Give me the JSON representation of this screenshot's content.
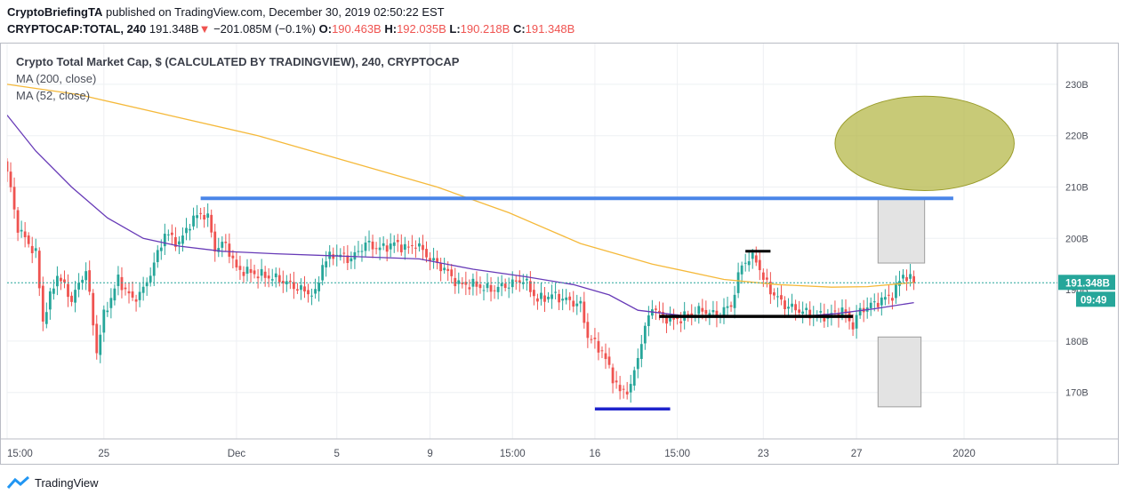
{
  "header": {
    "author": "CryptoBriefingTA",
    "published_text": " published on TradingView.com, December 30, 2019 02:50:22 EST",
    "symbol": "CRYPTOCAP:TOTAL, 240",
    "last_value": "191.348B",
    "change_arrow": "▼",
    "change": "−201.085M (−0.1%)",
    "o_label": "O:",
    "o_value": "190.463B",
    "h_label": "H:",
    "h_value": "192.035B",
    "l_label": "L:",
    "l_value": "190.218B",
    "c_label": "C:",
    "c_value": "191.348B"
  },
  "legend": {
    "title": "Crypto Total Market Cap, $ (CALCULATED BY TRADINGVIEW), 240, CRYPTOCAP",
    "ma200": "MA (200, close)",
    "ma52": "MA (52, close)"
  },
  "footer": {
    "brand": "TradingView"
  },
  "colors": {
    "up": "#26a69a",
    "down": "#ef5350",
    "ma200": "#f5b93a",
    "ma52": "#673ab7",
    "resistance": "#4a86e8",
    "support_low": "#1f24cc",
    "support": "#000000",
    "target_ellipse": "#b5b84a",
    "box": "#e3e3e3",
    "price_label_bg": "#26a69a",
    "last_line": "#26a69a"
  },
  "chart_data": {
    "type": "candlestick",
    "title": "Crypto Total Market Cap, $ (CALCULATED BY TRADINGVIEW), 240, CRYPTOCAP",
    "ylim": [
      162,
      238
    ],
    "y_ticks": [
      {
        "value": 230,
        "label": "230B"
      },
      {
        "value": 220,
        "label": "220B"
      },
      {
        "value": 210,
        "label": "210B"
      },
      {
        "value": 200,
        "label": "200B"
      },
      {
        "value": 180,
        "label": "180B"
      },
      {
        "value": 170,
        "label": "170B"
      }
    ],
    "x_labels": [
      {
        "label": "15:00",
        "bar": 0
      },
      {
        "label": "25",
        "bar": 27
      },
      {
        "label": "Dec",
        "bar": 64
      },
      {
        "label": "5",
        "bar": 92
      },
      {
        "label": "9",
        "bar": 118
      },
      {
        "label": "15:00",
        "bar": 141
      },
      {
        "label": "16",
        "bar": 164
      },
      {
        "label": "15:00",
        "bar": 187
      },
      {
        "label": "23",
        "bar": 211
      },
      {
        "label": "27",
        "bar": 237
      },
      {
        "label": "2020",
        "bar": 267
      }
    ],
    "last_price": {
      "value": 191.348,
      "label": "191.348B",
      "countdown": "09:49"
    },
    "key_closes": [
      [
        0,
        213
      ],
      [
        3,
        202
      ],
      [
        8,
        197
      ],
      [
        10,
        184
      ],
      [
        14,
        193
      ],
      [
        18,
        188
      ],
      [
        22,
        194
      ],
      [
        25,
        178
      ],
      [
        27,
        185
      ],
      [
        31,
        192
      ],
      [
        35,
        188
      ],
      [
        38,
        190
      ],
      [
        41,
        195
      ],
      [
        44,
        201
      ],
      [
        48,
        199
      ],
      [
        51,
        203
      ],
      [
        54,
        205
      ],
      [
        56,
        204
      ],
      [
        58,
        198
      ],
      [
        61,
        199
      ],
      [
        64,
        194
      ],
      [
        70,
        193
      ],
      [
        76,
        192
      ],
      [
        82,
        190
      ],
      [
        86,
        189
      ],
      [
        88,
        195
      ],
      [
        91,
        197
      ],
      [
        96,
        196
      ],
      [
        100,
        199
      ],
      [
        104,
        198
      ],
      [
        108,
        199
      ],
      [
        112,
        198
      ],
      [
        114,
        199
      ],
      [
        118,
        196
      ],
      [
        122,
        194
      ],
      [
        126,
        191
      ],
      [
        130,
        191
      ],
      [
        135,
        190
      ],
      [
        140,
        191
      ],
      [
        144,
        192
      ],
      [
        148,
        188
      ],
      [
        152,
        189
      ],
      [
        156,
        188
      ],
      [
        160,
        187
      ],
      [
        162,
        181
      ],
      [
        166,
        178
      ],
      [
        169,
        173
      ],
      [
        171,
        170
      ],
      [
        174,
        171
      ],
      [
        177,
        180
      ],
      [
        180,
        187
      ],
      [
        182,
        185
      ],
      [
        186,
        184
      ],
      [
        190,
        185
      ],
      [
        194,
        186
      ],
      [
        198,
        185
      ],
      [
        202,
        187
      ],
      [
        205,
        195
      ],
      [
        207,
        196
      ],
      [
        209,
        196
      ],
      [
        211,
        192
      ],
      [
        214,
        189
      ],
      [
        217,
        187
      ],
      [
        221,
        186
      ],
      [
        225,
        185
      ],
      [
        229,
        185
      ],
      [
        233,
        186
      ],
      [
        236,
        183
      ],
      [
        238,
        186
      ],
      [
        241,
        187
      ],
      [
        244,
        188
      ],
      [
        247,
        189
      ],
      [
        250,
        193
      ],
      [
        252,
        192
      ],
      [
        253,
        191.35
      ]
    ],
    "series": [
      {
        "name": "MA (200, close)",
        "points": [
          [
            0,
            230
          ],
          [
            20,
            228
          ],
          [
            45,
            224
          ],
          [
            70,
            220
          ],
          [
            95,
            215
          ],
          [
            120,
            210
          ],
          [
            140,
            205
          ],
          [
            160,
            199
          ],
          [
            180,
            195
          ],
          [
            200,
            192
          ],
          [
            215,
            191
          ],
          [
            230,
            190.5
          ],
          [
            240,
            190.6
          ],
          [
            253,
            191.4
          ]
        ]
      },
      {
        "name": "MA (52, close)",
        "points": [
          [
            0,
            224
          ],
          [
            8,
            217
          ],
          [
            18,
            210
          ],
          [
            28,
            204
          ],
          [
            38,
            200
          ],
          [
            48,
            198.5
          ],
          [
            60,
            197.5
          ],
          [
            75,
            197
          ],
          [
            95,
            196.5
          ],
          [
            115,
            196
          ],
          [
            130,
            194
          ],
          [
            145,
            192.5
          ],
          [
            158,
            191
          ],
          [
            168,
            189
          ],
          [
            176,
            186
          ],
          [
            188,
            185
          ],
          [
            200,
            184.7
          ],
          [
            212,
            184.7
          ],
          [
            222,
            184.8
          ],
          [
            232,
            185.4
          ],
          [
            242,
            186.3
          ],
          [
            253,
            187.5
          ]
        ]
      }
    ],
    "annotations": {
      "resistance_line": {
        "from_bar": 54,
        "to_bar": 264,
        "value": 207.8
      },
      "low_support_line": {
        "from_bar": 164,
        "to_bar": 185,
        "value": 166.8
      },
      "support_line": {
        "from_bar": 182,
        "to_bar": 236,
        "value": 184.8
      },
      "small_top_line": {
        "from_bar": 206,
        "to_bar": 213,
        "value": 197.5
      },
      "target_zone": {
        "center_bar": 256,
        "center_value": 218.5,
        "half_width_bars": 25,
        "half_height_value": 9.2
      },
      "upper_box": {
        "from_bar": 243,
        "to_bar": 256,
        "top": 207.6,
        "bottom": 195.2
      },
      "lower_box": {
        "from_bar": 243,
        "to_bar": 255,
        "top": 180.8,
        "bottom": 167.2
      }
    }
  }
}
